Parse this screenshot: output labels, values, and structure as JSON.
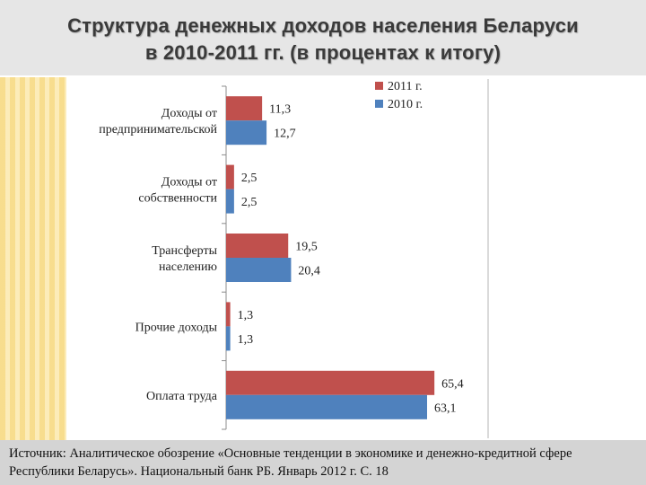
{
  "page": {
    "title_line1": "Структура денежных доходов населения Беларуси",
    "title_line2": "в 2010-2011 гг. (в процентах к итогу)",
    "source_line1": "Источник: Аналитическое обозрение «Основные тенденции в экономике и денежно-кредитной сфере",
    "source_line2": "Республики Беларусь». Национальный банк РБ. Январь 2012 г. С. 18"
  },
  "chart_data": {
    "type": "bar",
    "orientation": "horizontal",
    "categories": [
      [
        "Доходы от",
        "предпринимательской"
      ],
      [
        "Доходы от",
        "собственности"
      ],
      [
        "Трансферты",
        "населению"
      ],
      [
        "Прочие доходы"
      ],
      [
        "Оплата труда"
      ]
    ],
    "series": [
      {
        "name": "2011 г.",
        "color": "#c0504d",
        "values": [
          11.3,
          2.5,
          19.5,
          1.3,
          65.4
        ],
        "value_labels": [
          "11,3",
          "2,5",
          "19,5",
          "1,3",
          "65,4"
        ]
      },
      {
        "name": "2010 г.",
        "color": "#4f81bd",
        "values": [
          12.7,
          2.5,
          20.4,
          1.3,
          63.1
        ],
        "value_labels": [
          "12,7",
          "2,5",
          "20,4",
          "1,3",
          "63,1"
        ]
      }
    ],
    "xlim": [
      0,
      80
    ],
    "grid": false,
    "legend_position": "top-right"
  }
}
